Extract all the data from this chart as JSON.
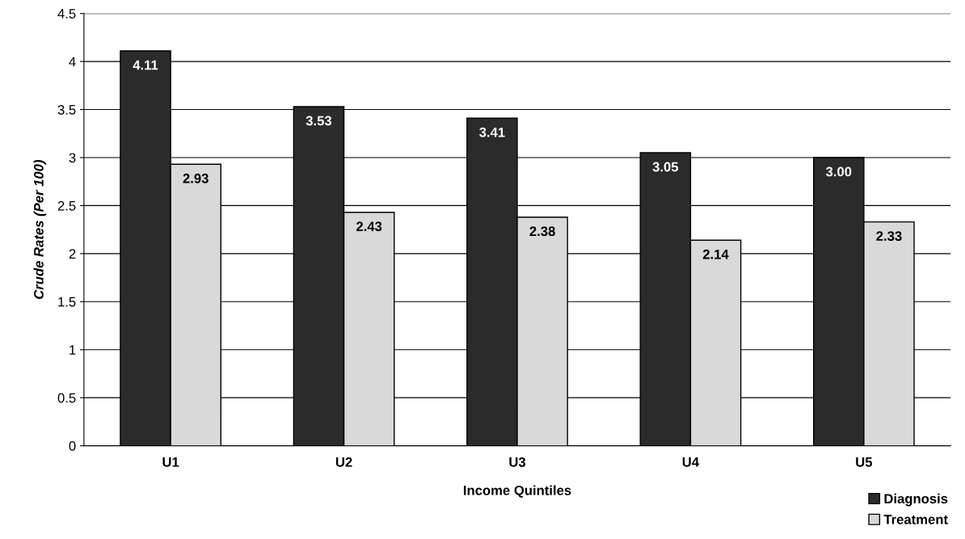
{
  "chart_data": {
    "type": "bar",
    "xlabel": "Income Quintiles",
    "ylabel": "Crude Rates (Per 100)",
    "categories": [
      "U1",
      "U2",
      "U3",
      "U4",
      "U5"
    ],
    "series": [
      {
        "name": "Diagnosis",
        "color": "#2b2b2b",
        "values": [
          4.11,
          3.53,
          3.41,
          3.05,
          3.0
        ],
        "value_labels": [
          "4.11",
          "3.53",
          "3.41",
          "3.05",
          "3.00"
        ]
      },
      {
        "name": "Treatment",
        "color": "#d9d9d9",
        "values": [
          2.93,
          2.43,
          2.38,
          2.14,
          2.33
        ],
        "value_labels": [
          "2.93",
          "2.43",
          "2.38",
          "2.14",
          "2.33"
        ]
      }
    ],
    "ylim": [
      0,
      4.5
    ],
    "yticks": [
      0,
      0.5,
      1,
      1.5,
      2,
      2.5,
      3,
      3.5,
      4,
      4.5
    ],
    "grid": "y",
    "legend": "bottom right"
  }
}
